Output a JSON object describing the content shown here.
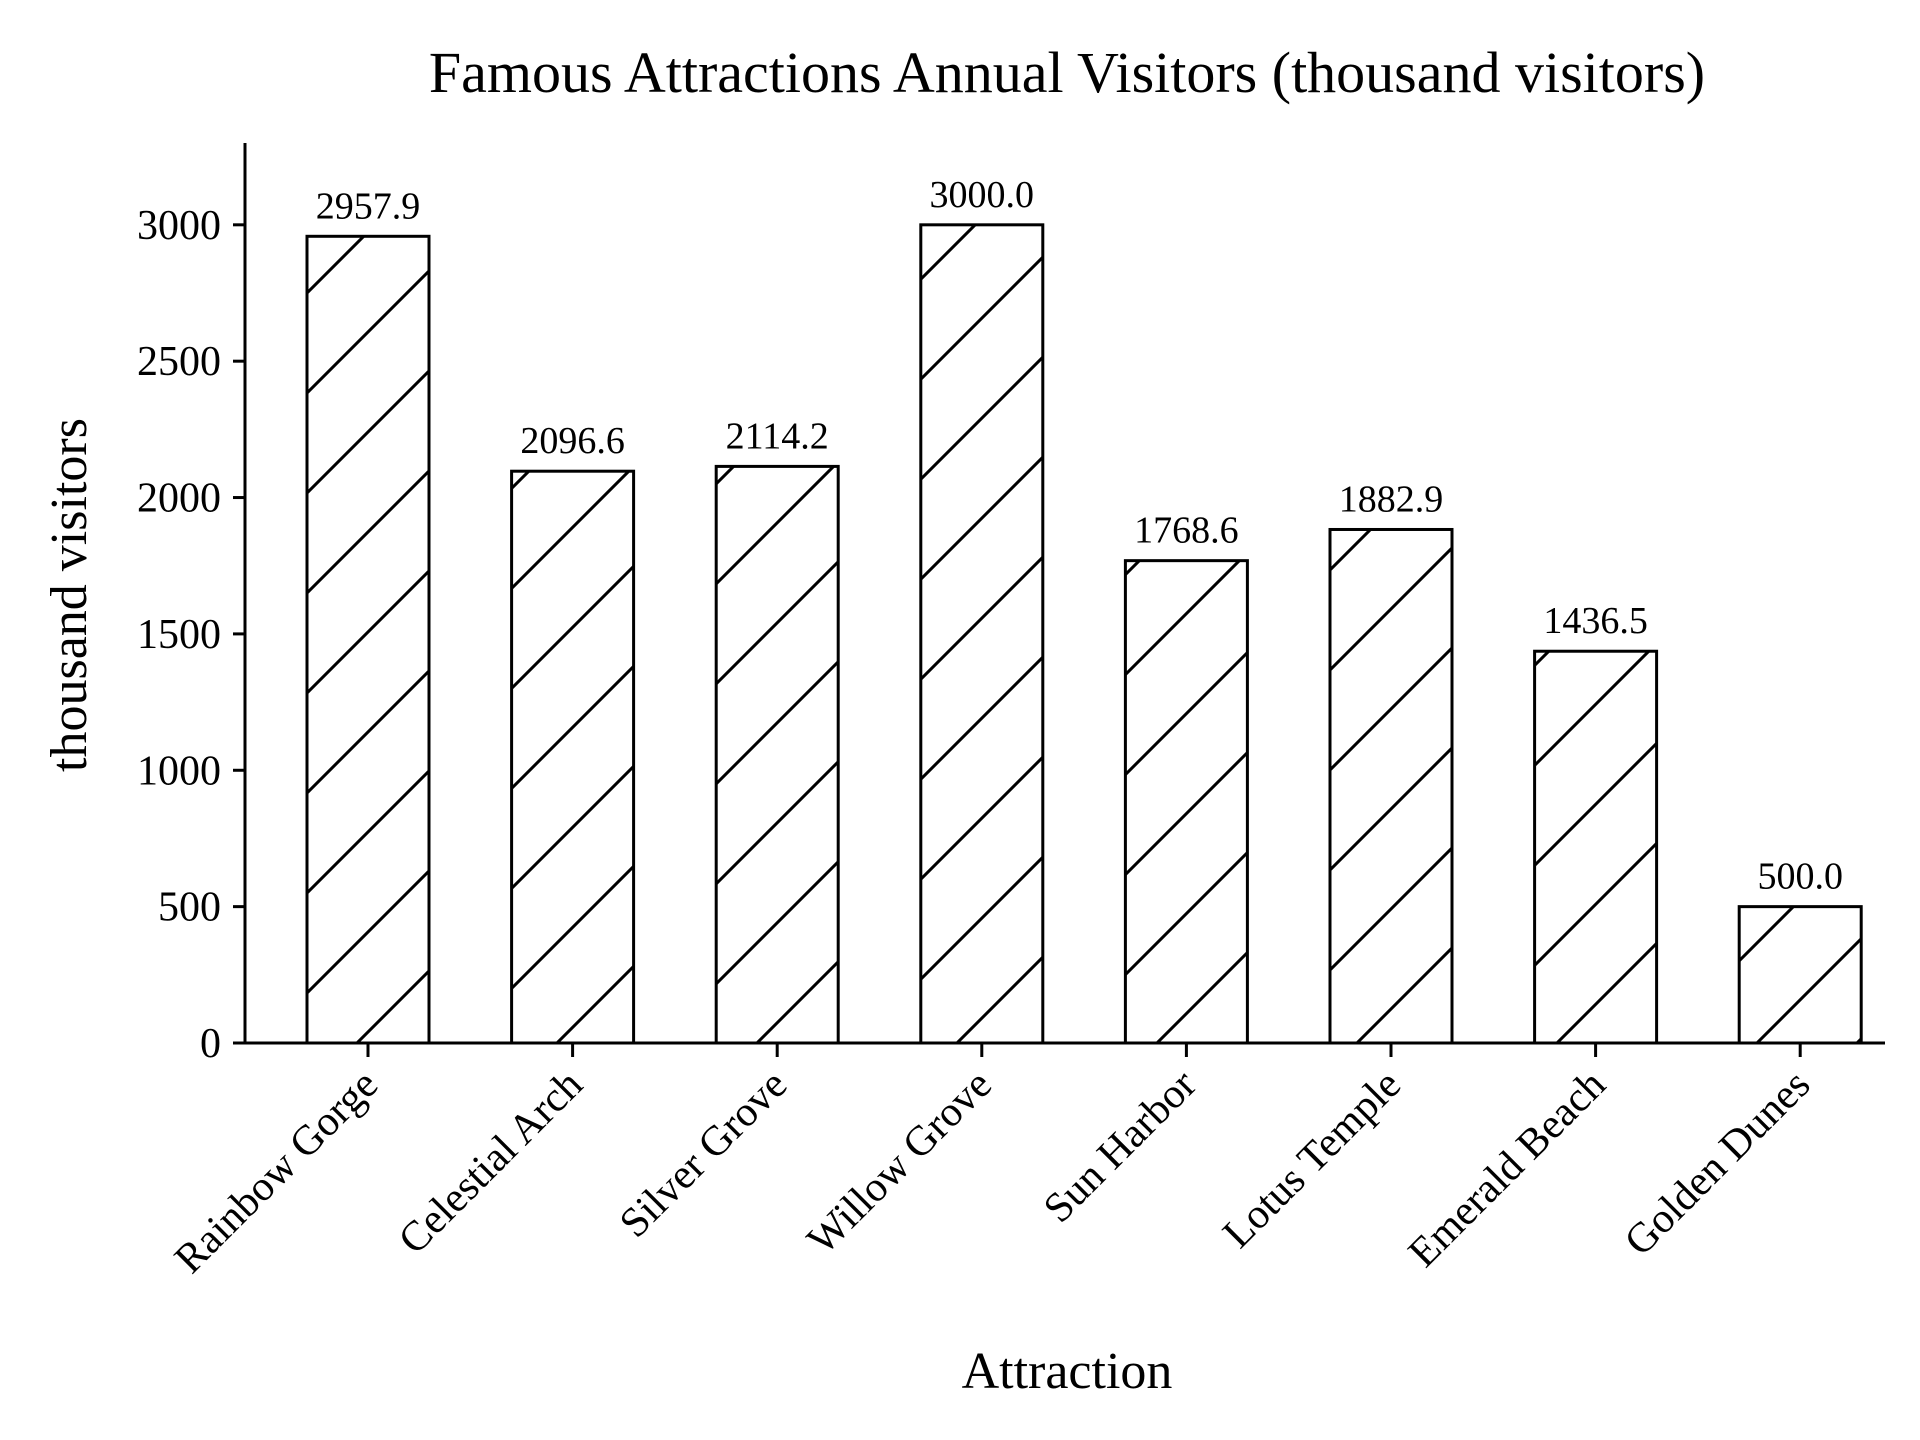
{
  "chart_data": {
    "type": "bar",
    "title": "Famous Attractions Annual Visitors (thousand visitors)",
    "xlabel": "Attraction",
    "ylabel": "thousand visitors",
    "categories": [
      "Rainbow Gorge",
      "Celestial Arch",
      "Silver Grove",
      "Willow Grove",
      "Sun Harbor",
      "Lotus Temple",
      "Emerald Beach",
      "Golden Dunes"
    ],
    "values": [
      2957.9,
      2096.6,
      2114.2,
      3000.0,
      1768.6,
      1882.9,
      1436.5,
      500.0
    ],
    "value_labels": [
      "2957.9",
      "2096.6",
      "2114.2",
      "3000.0",
      "1768.6",
      "1882.9",
      "1436.5",
      "500.0"
    ],
    "ylim": [
      0,
      3300
    ],
    "yticks": [
      0,
      500,
      1000,
      1500,
      2000,
      2500,
      3000
    ],
    "ytick_labels": [
      "0",
      "500",
      "1000",
      "1500",
      "2000",
      "2500",
      "3000"
    ],
    "grid": false,
    "bar_style": "white fill, black edge, diagonal hatch",
    "colors": {
      "edge": "#000000",
      "fill": "#ffffff"
    }
  }
}
